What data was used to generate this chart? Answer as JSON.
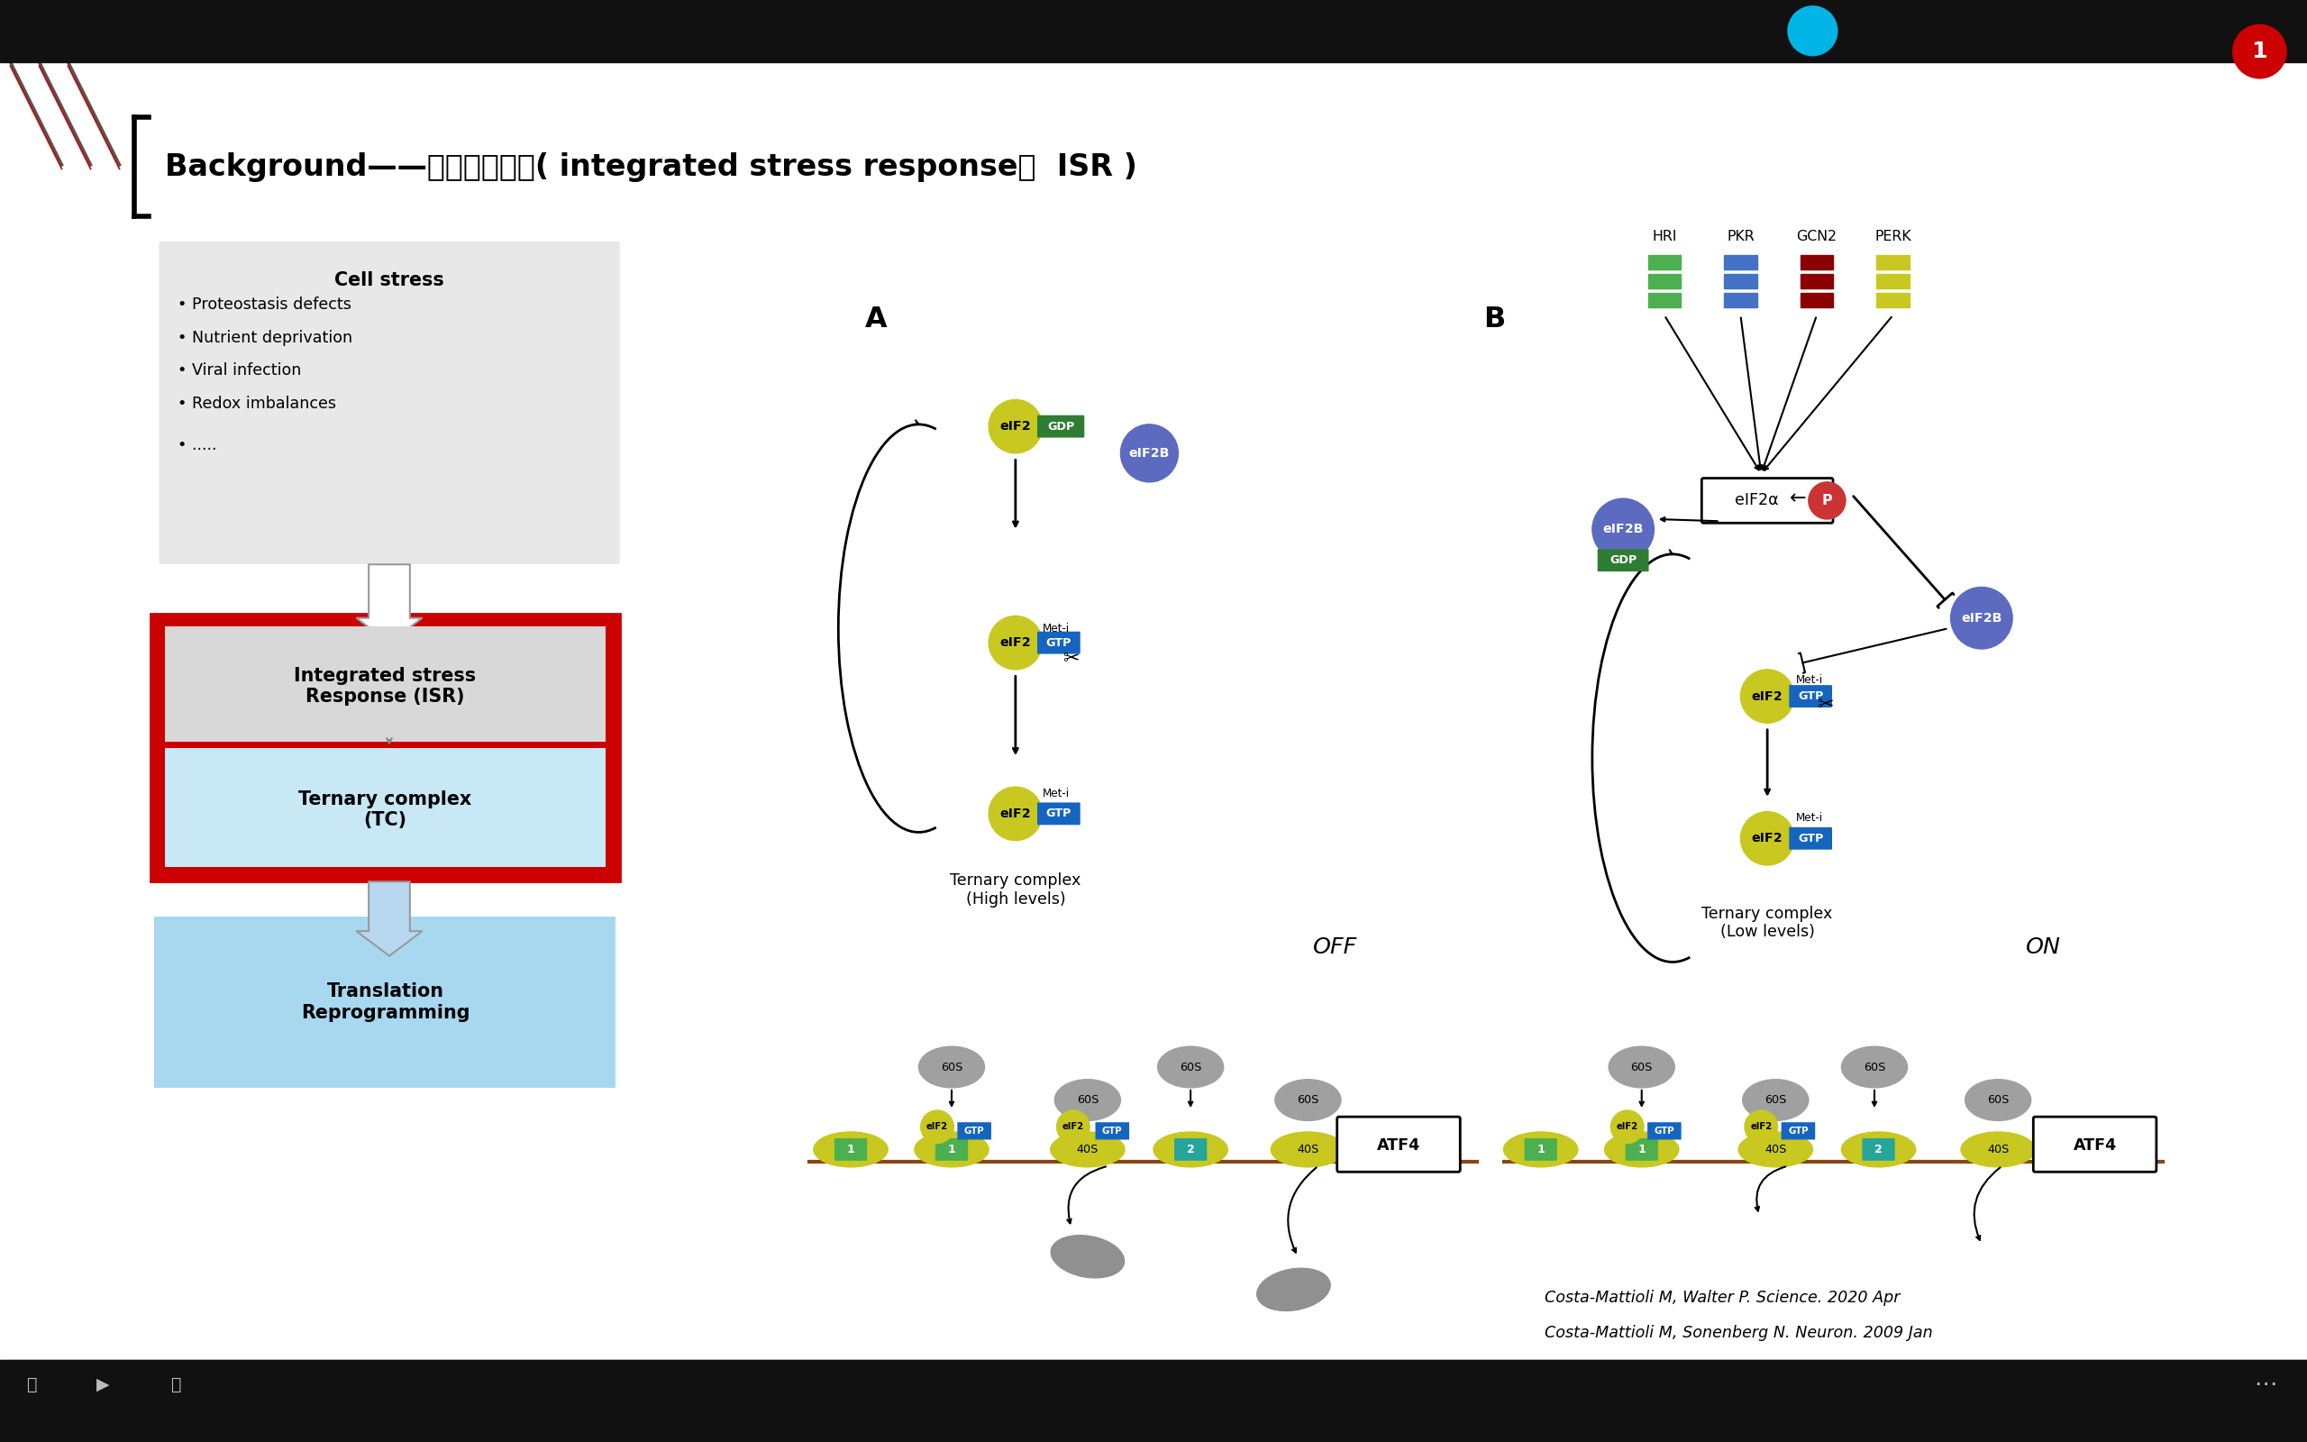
{
  "title": "Background——整合应激反应( integrated stress response，  ISR )",
  "bg_color": "#ffffff",
  "cell_stress_title": "Cell stress",
  "cell_stress_items": [
    "• Proteostasis defects",
    "• Nutrient deprivation",
    "• Viral infection",
    "• Redox imbalances",
    "• ....."
  ],
  "box1_label": "Integrated stress\nResponse (ISR)",
  "box2_label": "Ternary complex\n(TC)",
  "box3_label": "Translation\nReprogramming",
  "label_A": "A",
  "label_B": "B",
  "kinases": [
    "HRI",
    "PKR",
    "GCN2",
    "PERK"
  ],
  "kinase_colors": [
    "#4caf50",
    "#4472c4",
    "#8b0000",
    "#c8c820"
  ],
  "citation1": "Costa-Mattioli M, Walter P. Science. 2020 Apr",
  "citation2": "Costa-Mattioli M, Sonenberg N. Neuron. 2009 Jan",
  "slide_number": "1",
  "top_bar_color": "#111111",
  "bottom_bar_color": "#111111",
  "red_border": "#cc0000",
  "eif2_yellow": "#c8c820",
  "gdp_green": "#2e7d32",
  "gtp_blue": "#1565c0",
  "eif2b_purple": "#5c6bc0",
  "60s_gray": "#a0a0a0",
  "mRNA_brown": "#8B4513"
}
